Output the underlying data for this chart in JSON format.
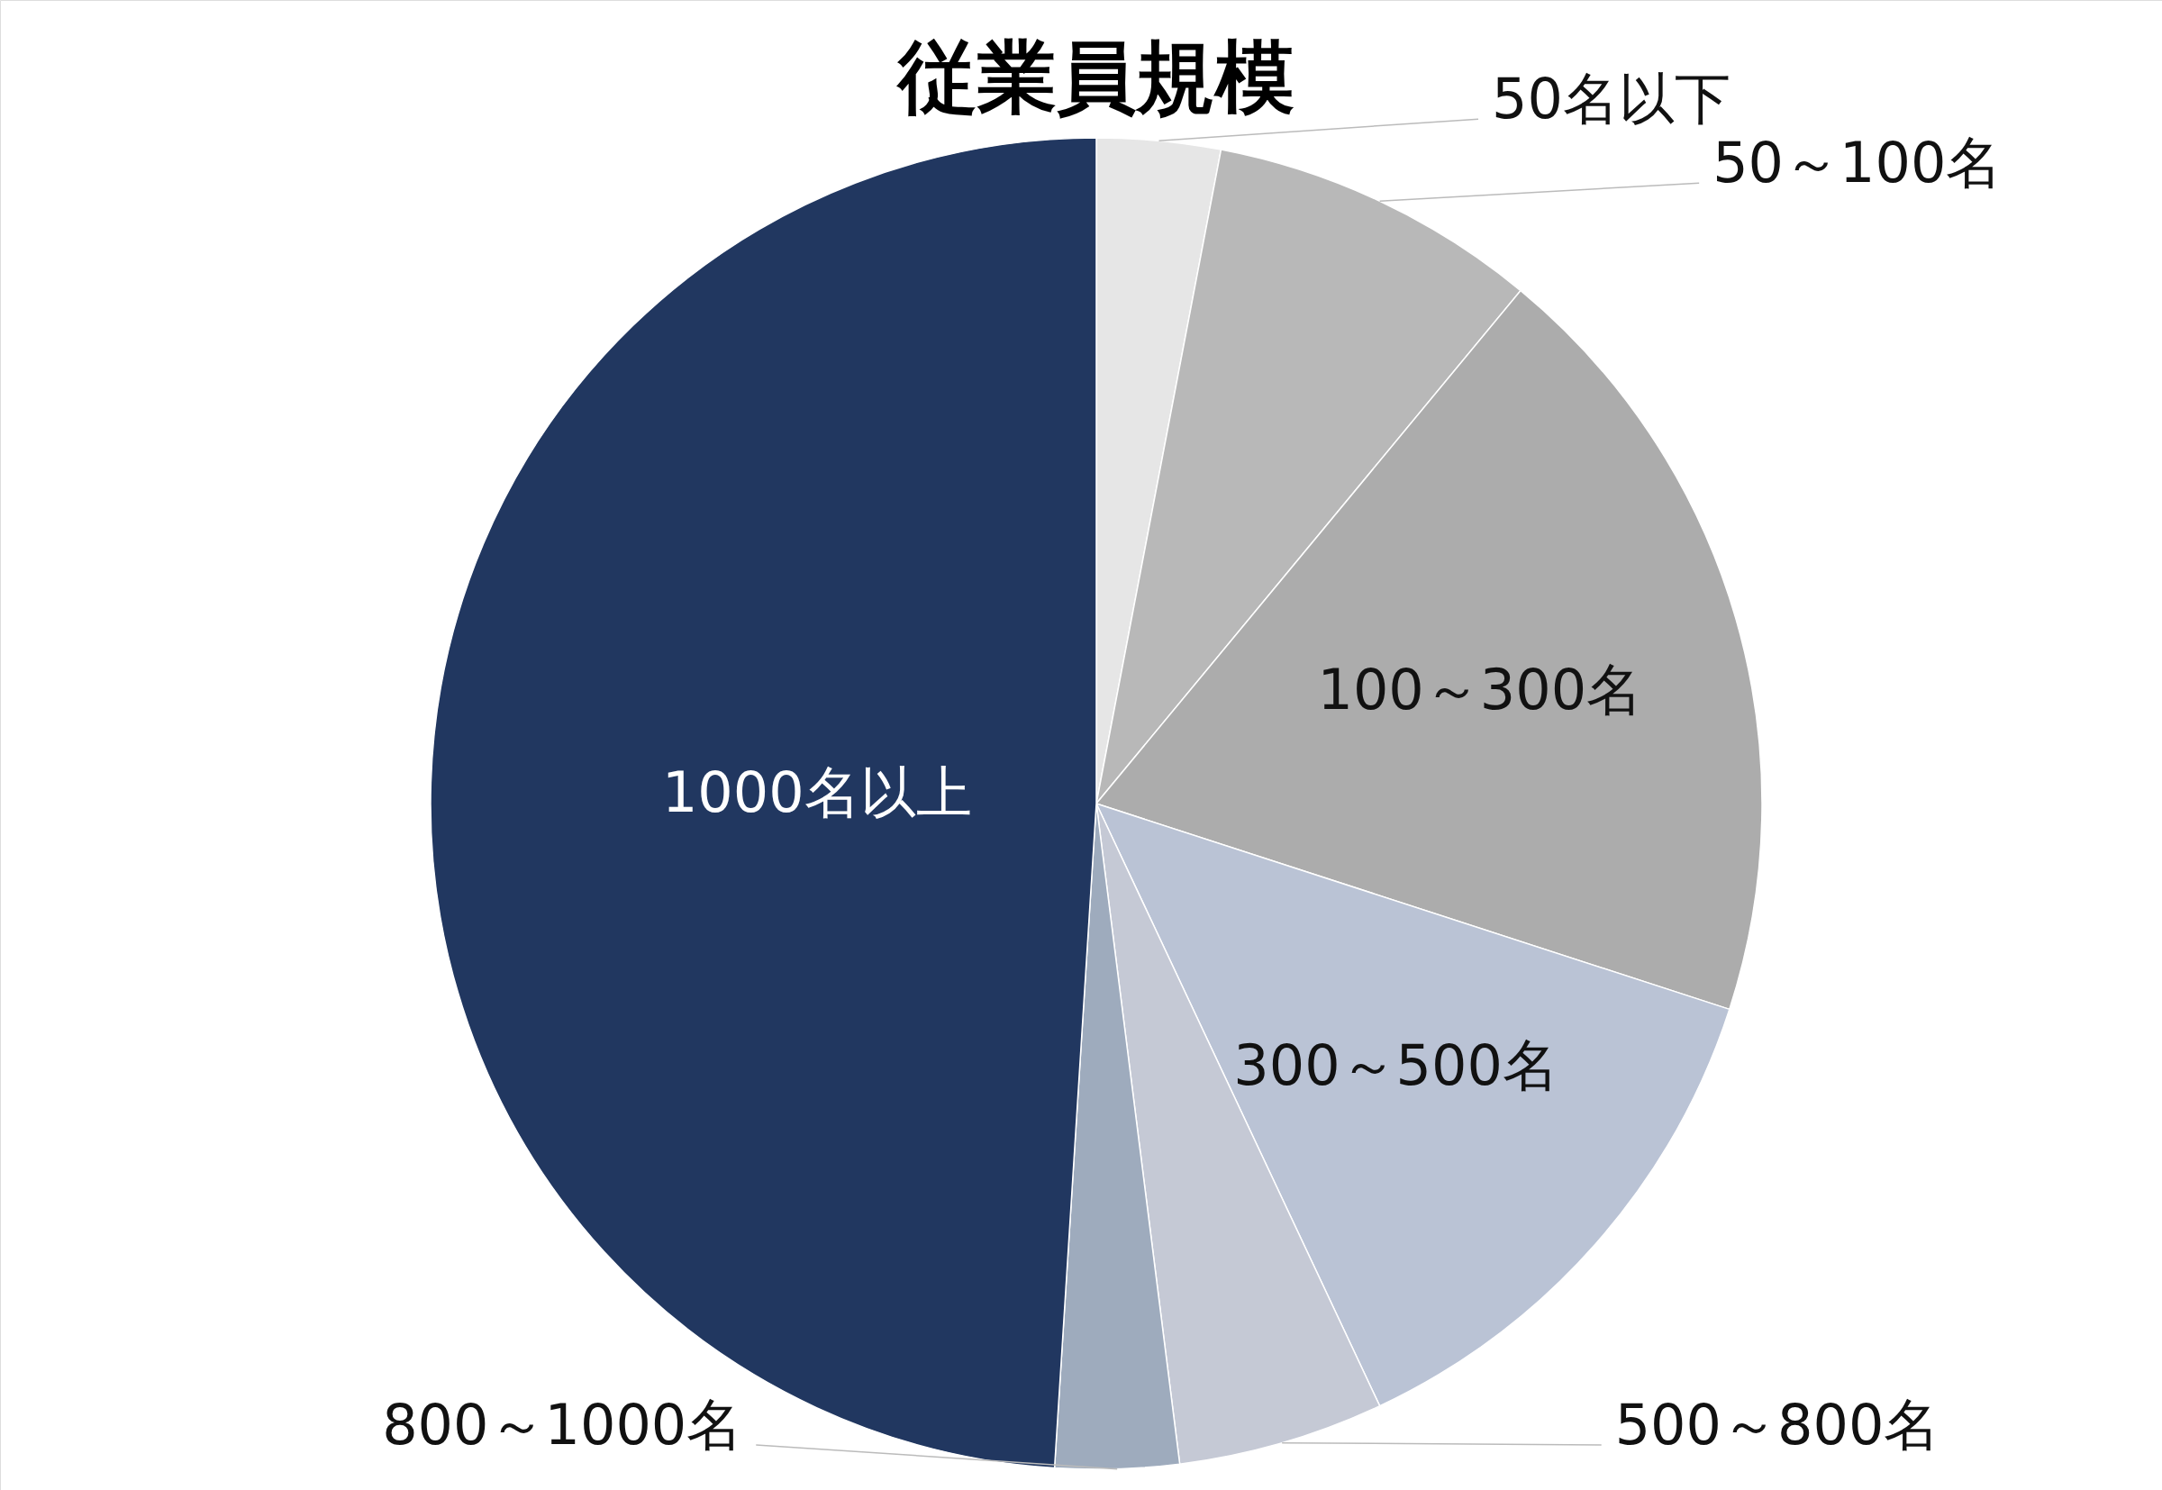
{
  "chart_data": {
    "type": "pie",
    "title": "従業員規模",
    "categories": [
      "50名以下",
      "50～100名",
      "100～300名",
      "300～500名",
      "500～800名",
      "800～1000名",
      "1000名以上"
    ],
    "values": [
      3,
      8,
      19,
      13,
      5,
      3,
      49
    ],
    "colors": [
      "#e6e6e6",
      "#b8b8b8",
      "#acacac",
      "#bac3d5",
      "#c5c9d5",
      "#9eabbd",
      "#213760"
    ]
  }
}
